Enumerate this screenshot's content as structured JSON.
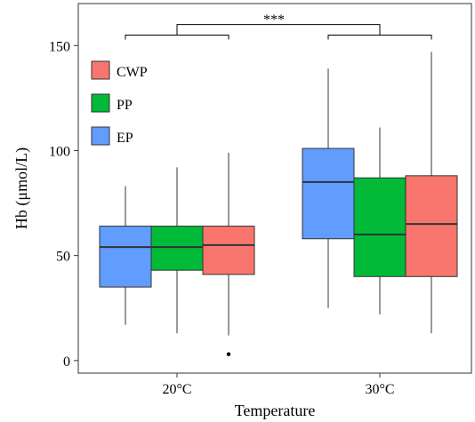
{
  "chart_data": {
    "type": "boxplot",
    "title": "",
    "xlabel": "Temperature",
    "ylabel": "Hb (μmol/L)",
    "categories": [
      "20°C",
      "30°C"
    ],
    "ylim": [
      -6,
      170
    ],
    "yticks": [
      0,
      50,
      100,
      150
    ],
    "grid": false,
    "legend_position": "top-left",
    "legend": [
      {
        "name": "CWP",
        "color": "#F8766D"
      },
      {
        "name": "PP",
        "color": "#00BA38"
      },
      {
        "name": "EP",
        "color": "#619CFF"
      }
    ],
    "series": [
      {
        "name": "EP",
        "color": "#619CFF",
        "boxes": [
          {
            "category": "20°C",
            "whisker_low": 17,
            "q1": 35,
            "median": 54,
            "q3": 64,
            "whisker_high": 83,
            "outliers": []
          },
          {
            "category": "30°C",
            "whisker_low": 25,
            "q1": 58,
            "median": 85,
            "q3": 101,
            "whisker_high": 139,
            "outliers": []
          }
        ]
      },
      {
        "name": "PP",
        "color": "#00BA38",
        "boxes": [
          {
            "category": "20°C",
            "whisker_low": 13,
            "q1": 43,
            "median": 54,
            "q3": 64,
            "whisker_high": 92,
            "outliers": []
          },
          {
            "category": "30°C",
            "whisker_low": 22,
            "q1": 40,
            "median": 60,
            "q3": 87,
            "whisker_high": 111,
            "outliers": []
          }
        ]
      },
      {
        "name": "CWP",
        "color": "#F8766D",
        "boxes": [
          {
            "category": "20°C",
            "whisker_low": 12,
            "q1": 41,
            "median": 55,
            "q3": 64,
            "whisker_high": 99,
            "outliers": [
              3
            ]
          },
          {
            "category": "30°C",
            "whisker_low": 13,
            "q1": 40,
            "median": 65,
            "q3": 88,
            "whisker_high": 147,
            "outliers": []
          }
        ]
      }
    ],
    "annotations": [
      {
        "type": "significance_bracket",
        "label": "***",
        "between": [
          "20°C",
          "30°C"
        ],
        "y": 160,
        "group_bracket_y": 155
      }
    ]
  }
}
